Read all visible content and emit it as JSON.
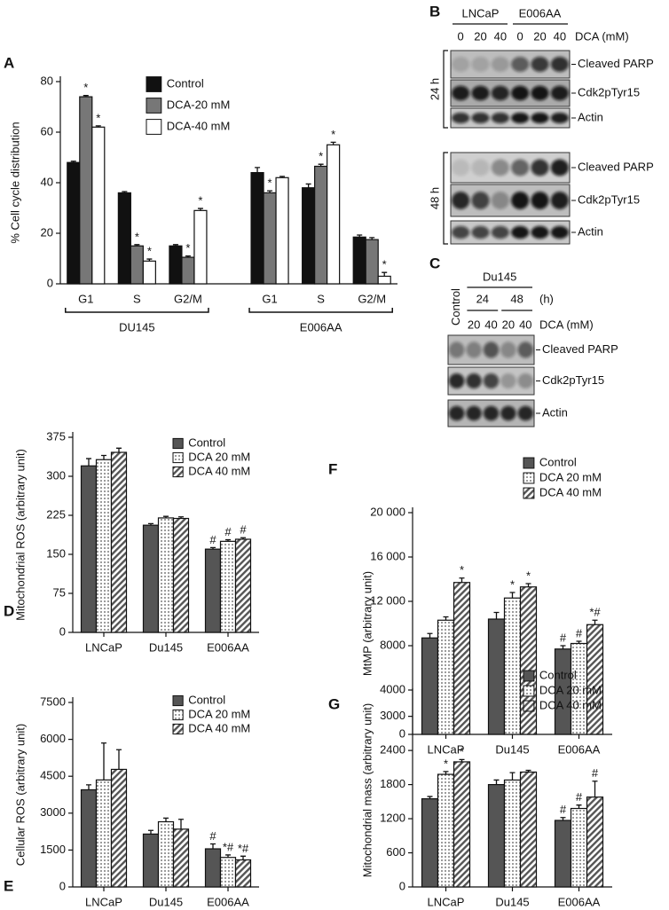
{
  "chart_data": [
    {
      "type": "bar",
      "panel": "A",
      "ylabel": "% Cell cycle distribution",
      "groups": [
        {
          "label": "DU145",
          "categories": [
            "G1",
            "S",
            "G2/M"
          ]
        },
        {
          "label": "E006AA",
          "categories": [
            "G1",
            "S",
            "G2/M"
          ]
        }
      ],
      "ylim": [
        0,
        80
      ],
      "yticks": [
        0,
        20,
        40,
        60,
        80
      ],
      "series": [
        {
          "name": "Control",
          "color": "#111111",
          "values": [
            48,
            36,
            15,
            44,
            38,
            18.5
          ],
          "errors": [
            0.5,
            0.5,
            0.5,
            2,
            1.5,
            0.8
          ],
          "annotations": [
            null,
            null,
            null,
            null,
            null,
            null
          ]
        },
        {
          "name": "DCA-20 mM",
          "color": "#777777",
          "values": [
            74,
            15,
            10.5,
            36,
            46.5,
            17.5
          ],
          "errors": [
            0.5,
            0.5,
            0.5,
            0.8,
            0.8,
            0.8
          ],
          "annotations": [
            "*",
            "*",
            "*",
            "*",
            "*",
            null
          ]
        },
        {
          "name": "DCA-40 mM",
          "color": "#ffffff",
          "values": [
            62,
            9,
            29,
            42,
            55,
            3
          ],
          "errors": [
            0.5,
            0.8,
            0.8,
            0.5,
            1,
            1.5
          ],
          "annotations": [
            "*",
            "*",
            "*",
            null,
            "*",
            "*"
          ]
        }
      ]
    },
    {
      "type": "bar",
      "panel": "D",
      "ylabel": "Mitochondrial ROS (arbitrary unit)",
      "categories": [
        "LNCaP",
        "Du145",
        "E006AA"
      ],
      "ylim": [
        0,
        375
      ],
      "yticks": [
        0,
        75,
        150,
        225,
        300,
        375
      ],
      "series": [
        {
          "name": "Control",
          "color": "#555555",
          "values": [
            320,
            206,
            160
          ],
          "errors": [
            14,
            3,
            3
          ],
          "annotations": [
            null,
            null,
            "#"
          ]
        },
        {
          "name": "DCA 20 mM",
          "color": "#555555",
          "pattern": "dots",
          "values": [
            332,
            220,
            175
          ],
          "errors": [
            8,
            3,
            3
          ],
          "annotations": [
            null,
            null,
            "#"
          ]
        },
        {
          "name": "DCA 40 mM",
          "color": "#555555",
          "pattern": "hatch",
          "values": [
            346,
            219,
            179
          ],
          "errors": [
            8,
            3,
            3
          ],
          "annotations": [
            null,
            null,
            "#"
          ]
        }
      ]
    },
    {
      "type": "bar",
      "panel": "E",
      "ylabel": "Cellular ROS (arbitrary unit)",
      "categories": [
        "LNCaP",
        "Du145",
        "E006AA"
      ],
      "ylim": [
        0,
        7500
      ],
      "yticks": [
        0,
        1500,
        3000,
        4500,
        6000,
        7500
      ],
      "series": [
        {
          "name": "Control",
          "color": "#555555",
          "values": [
            3950,
            2150,
            1550
          ],
          "errors": [
            200,
            150,
            200
          ],
          "annotations": [
            null,
            null,
            "#"
          ]
        },
        {
          "name": "DCA 20 mM",
          "color": "#555555",
          "pattern": "dots",
          "values": [
            4350,
            2650,
            1200
          ],
          "errors": [
            1500,
            150,
            100
          ],
          "annotations": [
            null,
            null,
            "*#"
          ]
        },
        {
          "name": "DCA 40 mM",
          "color": "#555555",
          "pattern": "hatch",
          "values": [
            4780,
            2350,
            1100
          ],
          "errors": [
            800,
            400,
            150
          ],
          "annotations": [
            null,
            null,
            "*#"
          ]
        }
      ]
    },
    {
      "type": "bar",
      "panel": "F",
      "ylabel": "MtMP (arbitrary unit)",
      "categories": [
        "LNCaP",
        "Du145",
        "E006AA"
      ],
      "ylim": [
        0,
        20000
      ],
      "yticks": [
        0,
        4000,
        8000,
        {
          "value": 12000,
          "label": "12 000"
        },
        {
          "value": 16000,
          "label": "16 000"
        },
        {
          "value": 20000,
          "label": "20 000"
        }
      ],
      "series": [
        {
          "name": "Control",
          "color": "#555555",
          "values": [
            8700,
            10400,
            7700
          ],
          "errors": [
            400,
            600,
            300
          ],
          "annotations": [
            null,
            null,
            "#"
          ]
        },
        {
          "name": "DCA 20 mM",
          "color": "#555555",
          "pattern": "dots",
          "values": [
            10300,
            12300,
            8200
          ],
          "errors": [
            300,
            500,
            200
          ],
          "annotations": [
            null,
            "*",
            "#"
          ]
        },
        {
          "name": "DCA 40 mM",
          "color": "#555555",
          "pattern": "hatch",
          "values": [
            13700,
            13300,
            9900
          ],
          "errors": [
            400,
            300,
            400
          ],
          "annotations": [
            "*",
            "*",
            "*#"
          ]
        }
      ]
    },
    {
      "type": "bar",
      "panel": "G",
      "ylabel": "Mitochondrial mass (arbitrary unit)",
      "categories": [
        "LNCaP",
        "Du145",
        "E006AA"
      ],
      "ylim": [
        0,
        3400
      ],
      "yticks": [
        0,
        600,
        1200,
        1800,
        2400,
        3000
      ],
      "series": [
        {
          "name": "Control",
          "color": "#555555",
          "values": [
            1550,
            1800,
            1170
          ],
          "errors": [
            40,
            80,
            50
          ],
          "annotations": [
            null,
            null,
            "#"
          ]
        },
        {
          "name": "DCA 20 mM",
          "color": "#555555",
          "pattern": "dots",
          "values": [
            1980,
            1880,
            1380
          ],
          "errors": [
            50,
            130,
            60
          ],
          "annotations": [
            "*",
            null,
            "#"
          ]
        },
        {
          "name": "DCA 40 mM",
          "color": "#555555",
          "pattern": "hatch",
          "values": [
            2200,
            2020,
            1580
          ],
          "errors": [
            40,
            30,
            280
          ],
          "annotations": [
            "*",
            null,
            "#"
          ]
        }
      ]
    }
  ],
  "blots": [
    {
      "panel": "B",
      "cell_lines": [
        "LNCaP",
        "E006AA"
      ],
      "doses": [
        0,
        20,
        40,
        0,
        20,
        40
      ],
      "dose_label": "DCA (mM)",
      "timepoints": [
        {
          "label": "24 h",
          "bands": [
            "Cleaved PARP",
            "Cdk2pTyr15",
            "Actin"
          ]
        },
        {
          "label": "48 h",
          "bands": [
            "Cleaved PARP",
            "Cdk2pTyr15",
            "Actin"
          ]
        }
      ]
    },
    {
      "panel": "C",
      "cell_line": "Du145",
      "lane_label": "Control",
      "times": [
        24,
        48
      ],
      "time_unit": "(h)",
      "doses": [
        20,
        40,
        20,
        40
      ],
      "dose_label": "DCA (mM)",
      "bands": [
        "Cleaved PARP",
        "Cdk2pTyr15",
        "Actin"
      ]
    }
  ]
}
